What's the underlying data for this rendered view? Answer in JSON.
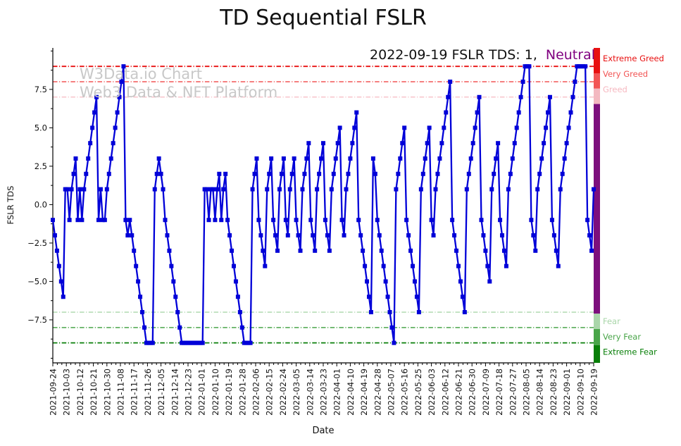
{
  "title": "TD Sequential FSLR",
  "watermark": {
    "line1": "W3Data.io Chart",
    "line2": "Web3 Data & NFT Platform"
  },
  "annotation": {
    "prefix": "2022-09-19 FSLR TDS: 1,",
    "status": "Neutral",
    "status_color": "#800080"
  },
  "chart_data": {
    "type": "line",
    "title": "TD Sequential FSLR",
    "xlabel": "Date",
    "ylabel": "FSLR TDS",
    "ylim": [
      -10.3,
      10.2
    ],
    "yticks": [
      7.5,
      5.0,
      2.5,
      0.0,
      -2.5,
      -5.0,
      -7.5
    ],
    "line_color": "#0000d8",
    "marker": "square",
    "legend": "none",
    "grid": false,
    "xticklabels": [
      "2021-09-24",
      "2021-10-03",
      "2021-10-12",
      "2021-10-21",
      "2021-10-30",
      "2021-11-08",
      "2021-11-17",
      "2021-11-26",
      "2021-12-05",
      "2021-12-14",
      "2021-12-23",
      "2022-01-01",
      "2022-01-10",
      "2022-01-19",
      "2022-01-28",
      "2022-02-06",
      "2022-02-15",
      "2022-02-24",
      "2022-03-05",
      "2022-03-14",
      "2022-03-23",
      "2022-04-01",
      "2022-04-10",
      "2022-04-19",
      "2022-04-28",
      "2022-05-07",
      "2022-05-16",
      "2022-05-25",
      "2022-06-03",
      "2022-06-12",
      "2022-06-21",
      "2022-06-30",
      "2022-07-09",
      "2022-07-18",
      "2022-07-27",
      "2022-08-05",
      "2022-08-14",
      "2022-08-23",
      "2022-09-01",
      "2022-09-10",
      "2022-09-19"
    ],
    "values": [
      -1,
      -2,
      -3,
      -4,
      -5,
      -6,
      1,
      1,
      -1,
      1,
      2,
      3,
      -1,
      1,
      -1,
      1,
      2,
      3,
      4,
      5,
      6,
      7,
      -1,
      1,
      -1,
      -1,
      1,
      2,
      3,
      4,
      5,
      6,
      7,
      8,
      9,
      -1,
      -2,
      -1,
      -2,
      -3,
      -4,
      -5,
      -6,
      -7,
      -8,
      -9,
      -9,
      -9,
      -9,
      1,
      2,
      3,
      2,
      1,
      -1,
      -2,
      -3,
      -4,
      -5,
      -6,
      -7,
      -8,
      -9,
      -9,
      -9,
      -9,
      -9,
      -9,
      -9,
      -9,
      -9,
      -9,
      -9,
      1,
      1,
      -1,
      1,
      1,
      -1,
      1,
      2,
      -1,
      1,
      2,
      -1,
      -2,
      -3,
      -4,
      -5,
      -6,
      -7,
      -8,
      -9,
      -9,
      -9,
      -9,
      1,
      2,
      3,
      -1,
      -2,
      -3,
      -4,
      1,
      2,
      3,
      -1,
      -2,
      -3,
      1,
      2,
      3,
      -1,
      -2,
      1,
      2,
      3,
      -1,
      -2,
      -3,
      1,
      2,
      3,
      4,
      -1,
      -2,
      -3,
      1,
      2,
      3,
      4,
      -1,
      -2,
      -3,
      1,
      2,
      3,
      4,
      5,
      -1,
      -2,
      1,
      2,
      3,
      4,
      5,
      6,
      -1,
      -2,
      -3,
      -4,
      -5,
      -6,
      -7,
      3,
      2,
      -1,
      -2,
      -3,
      -4,
      -5,
      -6,
      -7,
      -8,
      -9,
      1,
      2,
      3,
      4,
      5,
      -1,
      -2,
      -3,
      -4,
      -5,
      -6,
      -7,
      1,
      2,
      3,
      4,
      5,
      -1,
      -2,
      1,
      2,
      3,
      4,
      5,
      6,
      7,
      8,
      -1,
      -2,
      -3,
      -4,
      -5,
      -6,
      -7,
      1,
      2,
      3,
      4,
      5,
      6,
      7,
      -1,
      -2,
      -3,
      -4,
      -5,
      1,
      2,
      3,
      4,
      -1,
      -2,
      -3,
      -4,
      1,
      2,
      3,
      4,
      5,
      6,
      7,
      8,
      9,
      9,
      9,
      -1,
      -2,
      -3,
      1,
      2,
      3,
      4,
      5,
      6,
      7,
      -1,
      -2,
      -3,
      -4,
      1,
      2,
      3,
      4,
      5,
      6,
      7,
      8,
      9,
      9,
      9,
      9,
      9,
      -1,
      -2,
      -3,
      1
    ],
    "thresholds": [
      {
        "value": 9,
        "label": "Extreme Greed",
        "color": "#e81010",
        "width": 1.8
      },
      {
        "value": 8,
        "label": "Very Greed",
        "color": "#f25555",
        "width": 1.5
      },
      {
        "value": 7,
        "label": "Greed",
        "color": "#f6b8c0",
        "width": 1.3
      },
      {
        "value": -7,
        "label": "Fear",
        "color": "#a9d6a9",
        "width": 1.3
      },
      {
        "value": -8,
        "label": "Very Fear",
        "color": "#49a549",
        "width": 1.5
      },
      {
        "value": -9,
        "label": "Extreme Fear",
        "color": "#087f08",
        "width": 1.8
      }
    ],
    "gauge_bar": [
      {
        "from": 10.2,
        "to": 8.55,
        "color": "#e81010"
      },
      {
        "from": 8.55,
        "to": 7.55,
        "color": "#f25555"
      },
      {
        "from": 7.55,
        "to": 6.55,
        "color": "#f3b8c0"
      },
      {
        "from": 6.55,
        "to": -7.1,
        "color": "#7d0f7d"
      },
      {
        "from": -7.1,
        "to": -8.1,
        "color": "#a9d6a9"
      },
      {
        "from": -8.1,
        "to": -9.15,
        "color": "#49a549"
      },
      {
        "from": -9.15,
        "to": -10.3,
        "color": "#087f08"
      }
    ]
  }
}
